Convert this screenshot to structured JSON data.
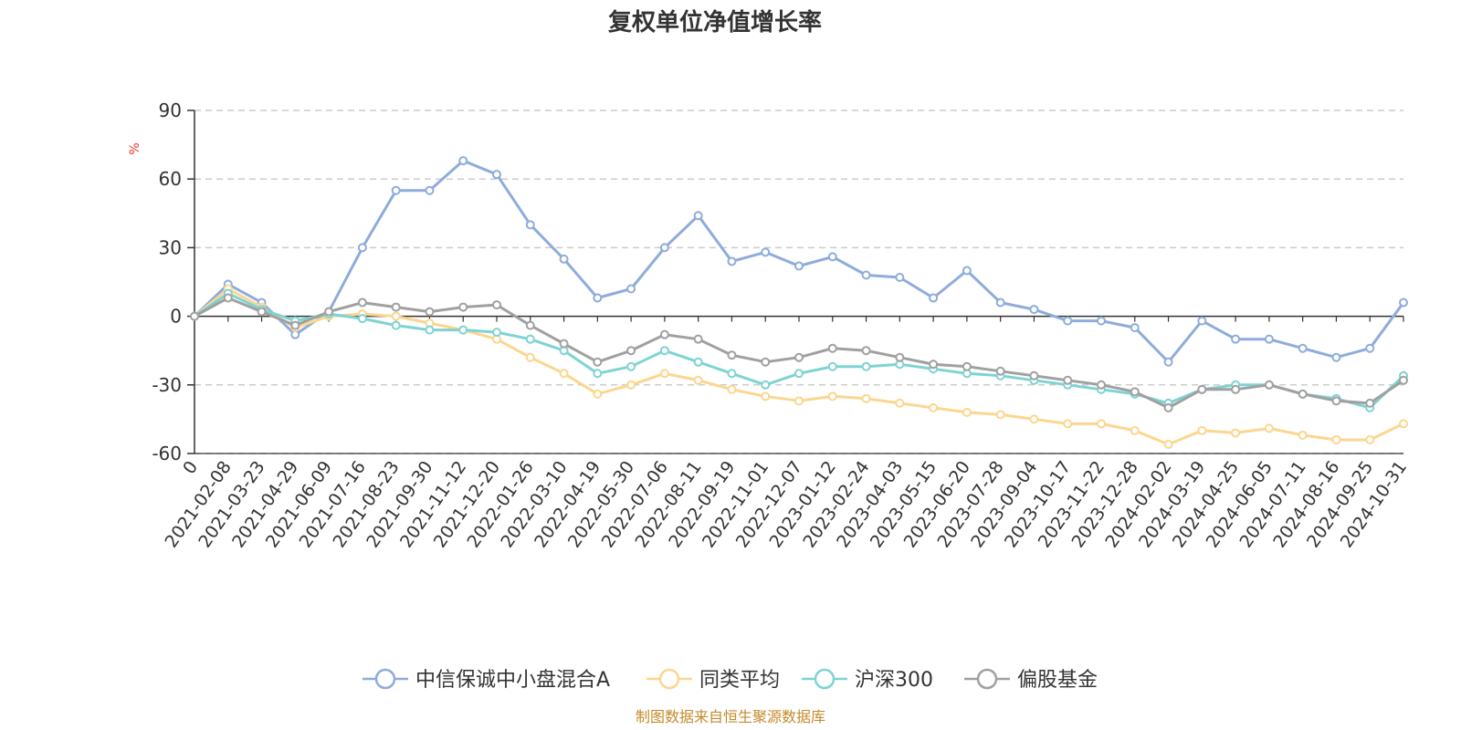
{
  "chart_data": {
    "type": "line",
    "title": "复权单位净值增长率",
    "ylabel": "%",
    "ylim": [
      -60,
      90
    ],
    "yticks": [
      -60,
      -30,
      0,
      30,
      60,
      90
    ],
    "x_tick_labels": [
      "0",
      "2021-02-08",
      "2021-03-23",
      "2021-04-29",
      "2021-06-09",
      "2021-07-16",
      "2021-08-23",
      "2021-09-30",
      "2021-11-12",
      "2021-12-20",
      "2022-01-26",
      "2022-03-10",
      "2022-04-19",
      "2022-05-30",
      "2022-07-06",
      "2022-08-11",
      "2022-09-19",
      "2022-11-01",
      "2022-12-07",
      "2023-01-12",
      "2023-02-24",
      "2023-04-03",
      "2023-05-15",
      "2023-06-20",
      "2023-07-28",
      "2023-09-04",
      "2023-10-17",
      "2023-11-22",
      "2023-12-28",
      "2024-02-02",
      "2024-03-19",
      "2024-04-25",
      "2024-06-05",
      "2024-07-11",
      "2024-08-16",
      "2024-09-25",
      "2024-10-31"
    ],
    "grid": true,
    "legend_position": "bottom",
    "series": [
      {
        "name": "中信保诚中小盘混合A",
        "color": "#8eacdb",
        "values": [
          0,
          14,
          6,
          -8,
          2,
          30,
          55,
          55,
          68,
          62,
          40,
          25,
          8,
          12,
          30,
          44,
          24,
          28,
          22,
          26,
          18,
          17,
          8,
          20,
          6,
          3,
          -2,
          -2,
          -5,
          -20,
          -2,
          -10,
          -10,
          -14,
          -18,
          -14,
          6
        ]
      },
      {
        "name": "同类平均",
        "color": "#fcd68f",
        "values": [
          0,
          12,
          4,
          -5,
          0,
          1,
          0,
          -3,
          -6,
          -10,
          -18,
          -25,
          -34,
          -30,
          -25,
          -28,
          -32,
          -35,
          -37,
          -35,
          -36,
          -38,
          -40,
          -42,
          -43,
          -45,
          -47,
          -47,
          -50,
          -56,
          -50,
          -51,
          -49,
          -52,
          -54,
          -54,
          -47
        ]
      },
      {
        "name": "沪深300",
        "color": "#7ed3d3",
        "values": [
          0,
          10,
          3,
          -2,
          1,
          -1,
          -4,
          -6,
          -6,
          -7,
          -10,
          -15,
          -25,
          -22,
          -15,
          -20,
          -25,
          -30,
          -25,
          -22,
          -22,
          -21,
          -23,
          -25,
          -26,
          -28,
          -30,
          -32,
          -34,
          -38,
          -32,
          -30,
          -30,
          -34,
          -36,
          -40,
          -26
        ]
      },
      {
        "name": "偏股基金",
        "color": "#a0a0a0",
        "values": [
          0,
          8,
          2,
          -4,
          2,
          6,
          4,
          2,
          4,
          5,
          -4,
          -12,
          -20,
          -15,
          -8,
          -10,
          -17,
          -20,
          -18,
          -14,
          -15,
          -18,
          -21,
          -22,
          -24,
          -26,
          -28,
          -30,
          -33,
          -40,
          -32,
          -32,
          -30,
          -34,
          -37,
          -38,
          -28
        ]
      }
    ]
  },
  "legend": [
    {
      "label": "中信保诚中小盘混合A",
      "color": "#8eacdb"
    },
    {
      "label": "同类平均",
      "color": "#fcd68f"
    },
    {
      "label": "沪深300",
      "color": "#7ed3d3"
    },
    {
      "label": "偏股基金",
      "color": "#a0a0a0"
    }
  ],
  "source_note": "制图数据来自恒生聚源数据库"
}
